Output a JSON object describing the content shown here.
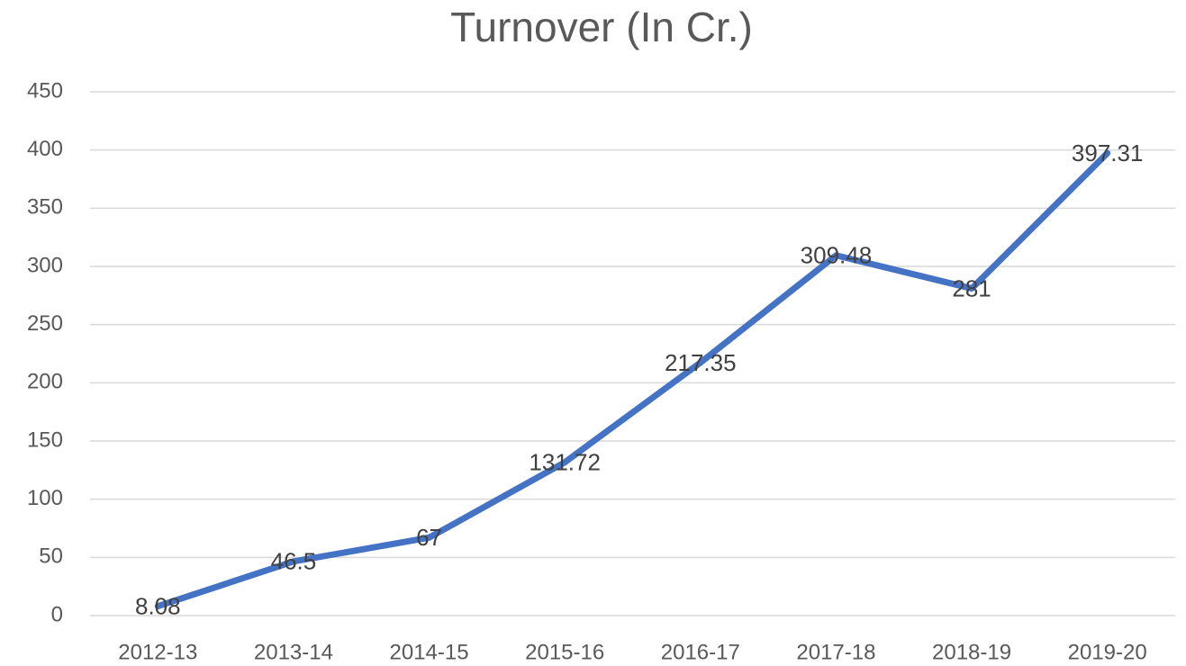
{
  "chart_data": {
    "type": "line",
    "title": "Turnover (In Cr.)",
    "categories": [
      "2012-13",
      "2013-14",
      "2014-15",
      "2015-16",
      "2016-17",
      "2017-18",
      "2018-19",
      "2019-20"
    ],
    "series": [
      {
        "name": "Turnover",
        "color": "#4472c4",
        "values": [
          8.08,
          46.5,
          67,
          131.72,
          217.35,
          309.48,
          281,
          397.31
        ]
      }
    ],
    "ylim": [
      0,
      450
    ],
    "yticks": [
      0,
      50,
      100,
      150,
      200,
      250,
      300,
      350,
      400,
      450
    ],
    "grid": true
  }
}
